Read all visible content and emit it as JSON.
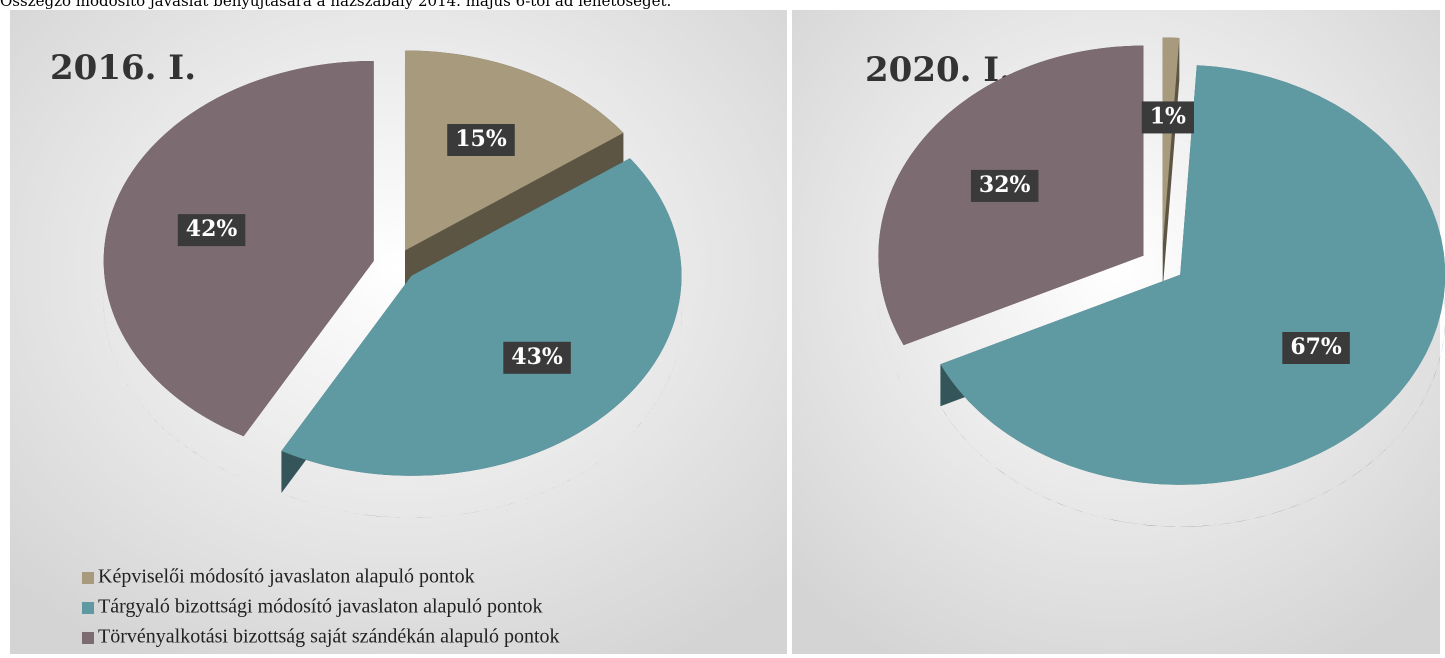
{
  "caption": "Összegző módosító javaslat benyújtására a házszabály 2014. május 6-tól ad lehetőséget.",
  "chart_data": [
    {
      "type": "pie",
      "title": "2016. I.",
      "categories": [
        "Képviselői módosító javaslaton alapuló pontok",
        "Tárgyaló bizottsági módosító javaslaton alapuló pontok",
        "Törvényalkotási bizottság saját szándékán alapuló pontok"
      ],
      "values": [
        15,
        43,
        42
      ],
      "value_labels": [
        "15%",
        "43%",
        "42%"
      ],
      "colors": [
        "#a89a7c",
        "#5f9aa3",
        "#7d6b72"
      ],
      "legend": "bottom"
    },
    {
      "type": "pie",
      "title": "2020. I.",
      "values": [
        1,
        67,
        32
      ],
      "value_labels": [
        "1%",
        "67%",
        "32%"
      ],
      "colors": [
        "#a89a7c",
        "#5f9aa3",
        "#7d6b72"
      ]
    }
  ]
}
